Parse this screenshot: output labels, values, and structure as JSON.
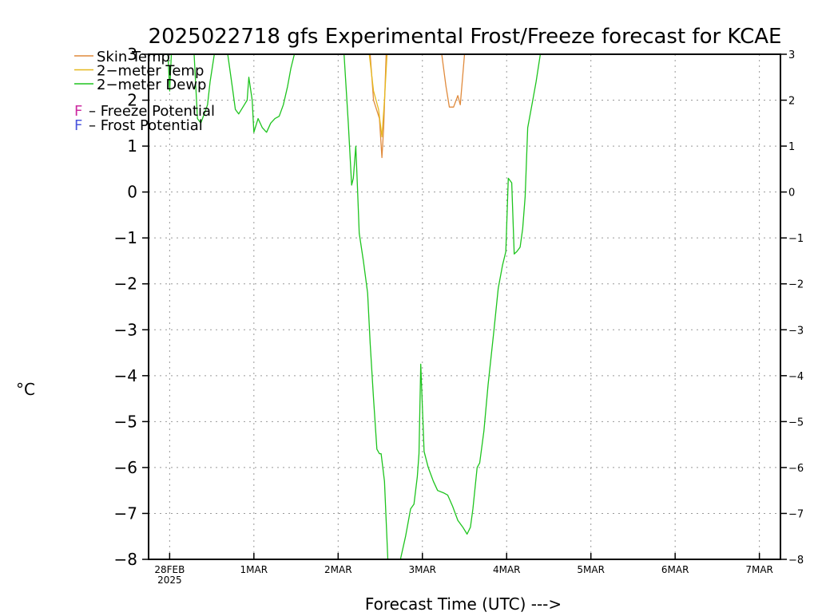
{
  "chart_data": {
    "type": "line",
    "title": "2025022718 gfs Experimental Frost/Freeze forecast for KCAE",
    "ylabel": "°C",
    "xlabel": "Forecast Time (UTC) --->",
    "ylim": [
      -8,
      3
    ],
    "y_ticks": [
      "3",
      "2",
      "1",
      "0",
      "−1",
      "−2",
      "−3",
      "−4",
      "−5",
      "−6",
      "−7",
      "−8"
    ],
    "y_tick_values": [
      3,
      2,
      1,
      0,
      -1,
      -2,
      -3,
      -4,
      -5,
      -6,
      -7,
      -8
    ],
    "x_unit": "days since 2025-02-28 00 UTC",
    "xlim": [
      -0.25,
      7.25
    ],
    "x_ticks": [
      {
        "x": 0,
        "label": "28FEB",
        "sublabel": "2025"
      },
      {
        "x": 1,
        "label": "1MAR",
        "sublabel": ""
      },
      {
        "x": 2,
        "label": "2MAR",
        "sublabel": ""
      },
      {
        "x": 3,
        "label": "3MAR",
        "sublabel": ""
      },
      {
        "x": 4,
        "label": "4MAR",
        "sublabel": ""
      },
      {
        "x": 5,
        "label": "5MAR",
        "sublabel": ""
      },
      {
        "x": 6,
        "label": "6MAR",
        "sublabel": ""
      },
      {
        "x": 7,
        "label": "7MAR",
        "sublabel": ""
      }
    ],
    "grid": true,
    "legend_position": "top-left",
    "legend_extra": [
      {
        "symbol": "F",
        "color": "#cc2aa0",
        "text": "– Freeze Potential"
      },
      {
        "symbol": "F",
        "color": "#4a55dd",
        "text": "– Frost Potential"
      }
    ],
    "series": [
      {
        "name": "Skin Temp",
        "color": "#e08a3c",
        "segments": [
          [
            [
              2.38,
              3.0
            ],
            [
              2.42,
              2.0
            ],
            [
              2.49,
              1.6
            ],
            [
              2.52,
              0.75
            ],
            [
              2.54,
              1.4
            ],
            [
              2.57,
              3.0
            ]
          ],
          [
            [
              3.23,
              3.0
            ],
            [
              3.28,
              2.3
            ],
            [
              3.32,
              1.85
            ],
            [
              3.37,
              1.85
            ],
            [
              3.42,
              2.1
            ],
            [
              3.45,
              1.9
            ],
            [
              3.5,
              3.0
            ]
          ]
        ]
      },
      {
        "name": "2−meter Temp",
        "color": "#e6b81e",
        "segments": [
          [
            [
              2.37,
              3.0
            ],
            [
              2.42,
              2.2
            ],
            [
              2.48,
              1.8
            ],
            [
              2.52,
              1.2
            ],
            [
              2.55,
              2.0
            ],
            [
              2.58,
              3.0
            ]
          ]
        ]
      },
      {
        "name": "2−meter Dewp",
        "color": "#1ec41e",
        "segments": [
          [
            [
              -0.02,
              3.0
            ],
            [
              0.0,
              2.2
            ],
            [
              0.02,
              3.0
            ]
          ],
          [
            [
              0.29,
              3.0
            ],
            [
              0.33,
              1.6
            ],
            [
              0.37,
              1.5
            ],
            [
              0.45,
              1.9
            ],
            [
              0.48,
              2.4
            ],
            [
              0.53,
              3.0
            ]
          ],
          [
            [
              0.69,
              3.0
            ],
            [
              0.75,
              2.2
            ],
            [
              0.78,
              1.8
            ],
            [
              0.82,
              1.7
            ],
            [
              0.87,
              1.85
            ],
            [
              0.92,
              2.0
            ],
            [
              0.94,
              2.5
            ],
            [
              0.98,
              2.0
            ],
            [
              1.0,
              1.3
            ],
            [
              1.05,
              1.6
            ],
            [
              1.1,
              1.4
            ],
            [
              1.15,
              1.3
            ],
            [
              1.2,
              1.5
            ],
            [
              1.25,
              1.6
            ],
            [
              1.3,
              1.65
            ],
            [
              1.35,
              1.9
            ],
            [
              1.4,
              2.3
            ],
            [
              1.44,
              2.7
            ],
            [
              1.48,
              3.0
            ]
          ],
          [
            [
              2.07,
              3.0
            ],
            [
              2.12,
              1.5
            ],
            [
              2.16,
              0.15
            ],
            [
              2.18,
              0.3
            ],
            [
              2.21,
              1.0
            ],
            [
              2.23,
              0.05
            ],
            [
              2.25,
              -0.9
            ],
            [
              2.3,
              -1.5
            ],
            [
              2.35,
              -2.2
            ],
            [
              2.38,
              -3.3
            ],
            [
              2.42,
              -4.5
            ],
            [
              2.46,
              -5.6
            ],
            [
              2.49,
              -5.7
            ],
            [
              2.51,
              -5.7
            ],
            [
              2.55,
              -6.3
            ],
            [
              2.59,
              -8.0
            ]
          ],
          [
            [
              2.74,
              -8.0
            ],
            [
              2.8,
              -7.5
            ],
            [
              2.86,
              -6.9
            ],
            [
              2.9,
              -6.8
            ],
            [
              2.94,
              -6.2
            ],
            [
              2.96,
              -5.7
            ],
            [
              2.98,
              -3.75
            ],
            [
              3.0,
              -4.7
            ],
            [
              3.02,
              -5.65
            ],
            [
              3.07,
              -6.0
            ],
            [
              3.13,
              -6.3
            ],
            [
              3.18,
              -6.5
            ],
            [
              3.25,
              -6.55
            ],
            [
              3.3,
              -6.6
            ],
            [
              3.36,
              -6.85
            ],
            [
              3.42,
              -7.15
            ],
            [
              3.48,
              -7.3
            ],
            [
              3.53,
              -7.45
            ],
            [
              3.57,
              -7.3
            ],
            [
              3.6,
              -6.9
            ],
            [
              3.65,
              -6.0
            ],
            [
              3.68,
              -5.9
            ],
            [
              3.73,
              -5.2
            ],
            [
              3.78,
              -4.2
            ],
            [
              3.85,
              -3.0
            ],
            [
              3.9,
              -2.1
            ],
            [
              3.95,
              -1.6
            ],
            [
              3.99,
              -1.3
            ],
            [
              4.02,
              0.3
            ],
            [
              4.06,
              0.2
            ],
            [
              4.09,
              -1.35
            ],
            [
              4.12,
              -1.3
            ],
            [
              4.16,
              -1.2
            ],
            [
              4.19,
              -0.8
            ],
            [
              4.22,
              -0.1
            ],
            [
              4.25,
              1.4
            ],
            [
              4.3,
              1.9
            ],
            [
              4.35,
              2.4
            ],
            [
              4.4,
              3.0
            ]
          ]
        ]
      }
    ]
  }
}
